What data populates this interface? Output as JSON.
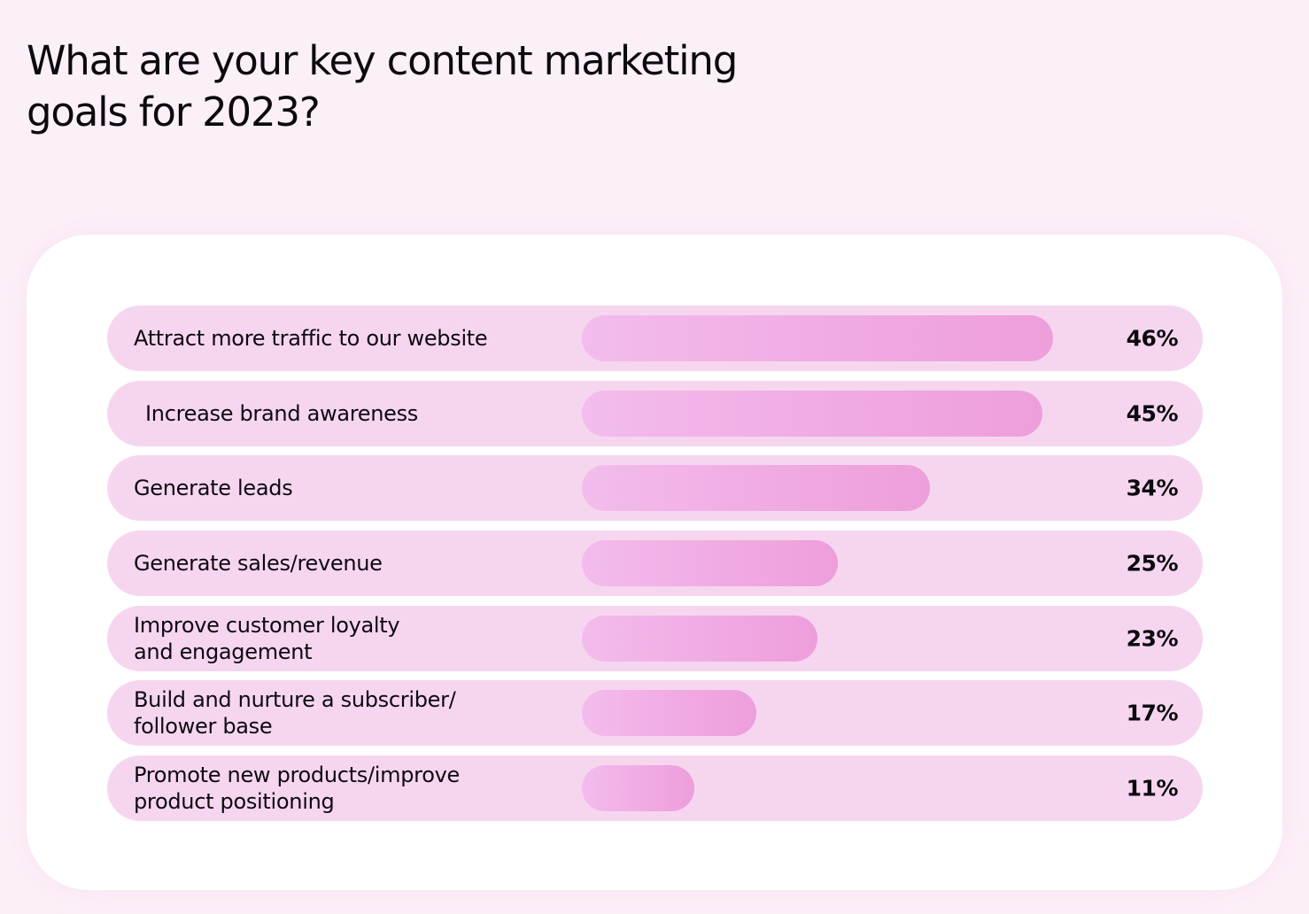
{
  "title": "What are your key content marketing goals for 2023?",
  "colors": {
    "page_background": "#fcf0f8",
    "card_background": "#ffffff",
    "row_background": "#f6d6ef",
    "bar_start": "#f3bced",
    "bar_end": "#ee9edb",
    "text": "#0d0a10"
  },
  "rows": [
    {
      "label": "Attract more traffic to our website",
      "value": "46%"
    },
    {
      "label": "Increase brand awareness",
      "value": "45%"
    },
    {
      "label": "Generate leads",
      "value": "34%"
    },
    {
      "label": "Generate sales/revenue",
      "value": "25%"
    },
    {
      "label": "Improve customer loyalty\nand engagement",
      "value": "23%"
    },
    {
      "label": "Build and nurture a subscriber/\nfollower base",
      "value": "17%"
    },
    {
      "label": "Promote new products/improve\nproduct positioning",
      "value": "11%"
    }
  ],
  "chart_data": {
    "type": "bar",
    "orientation": "horizontal",
    "title": "What are your key content marketing goals for 2023?",
    "categories": [
      "Attract more traffic to our website",
      "Increase brand awareness",
      "Generate leads",
      "Generate sales/revenue",
      "Improve customer loyalty and engagement",
      "Build and nurture a subscriber/follower base",
      "Promote new products/improve product positioning"
    ],
    "values": [
      46,
      45,
      34,
      25,
      23,
      17,
      11
    ],
    "value_labels": [
      "46%",
      "45%",
      "34%",
      "25%",
      "23%",
      "17%",
      "11%"
    ],
    "xlabel": "",
    "ylabel": "",
    "unit": "%",
    "xlim": [
      0,
      50
    ],
    "grid": false,
    "legend": null
  }
}
